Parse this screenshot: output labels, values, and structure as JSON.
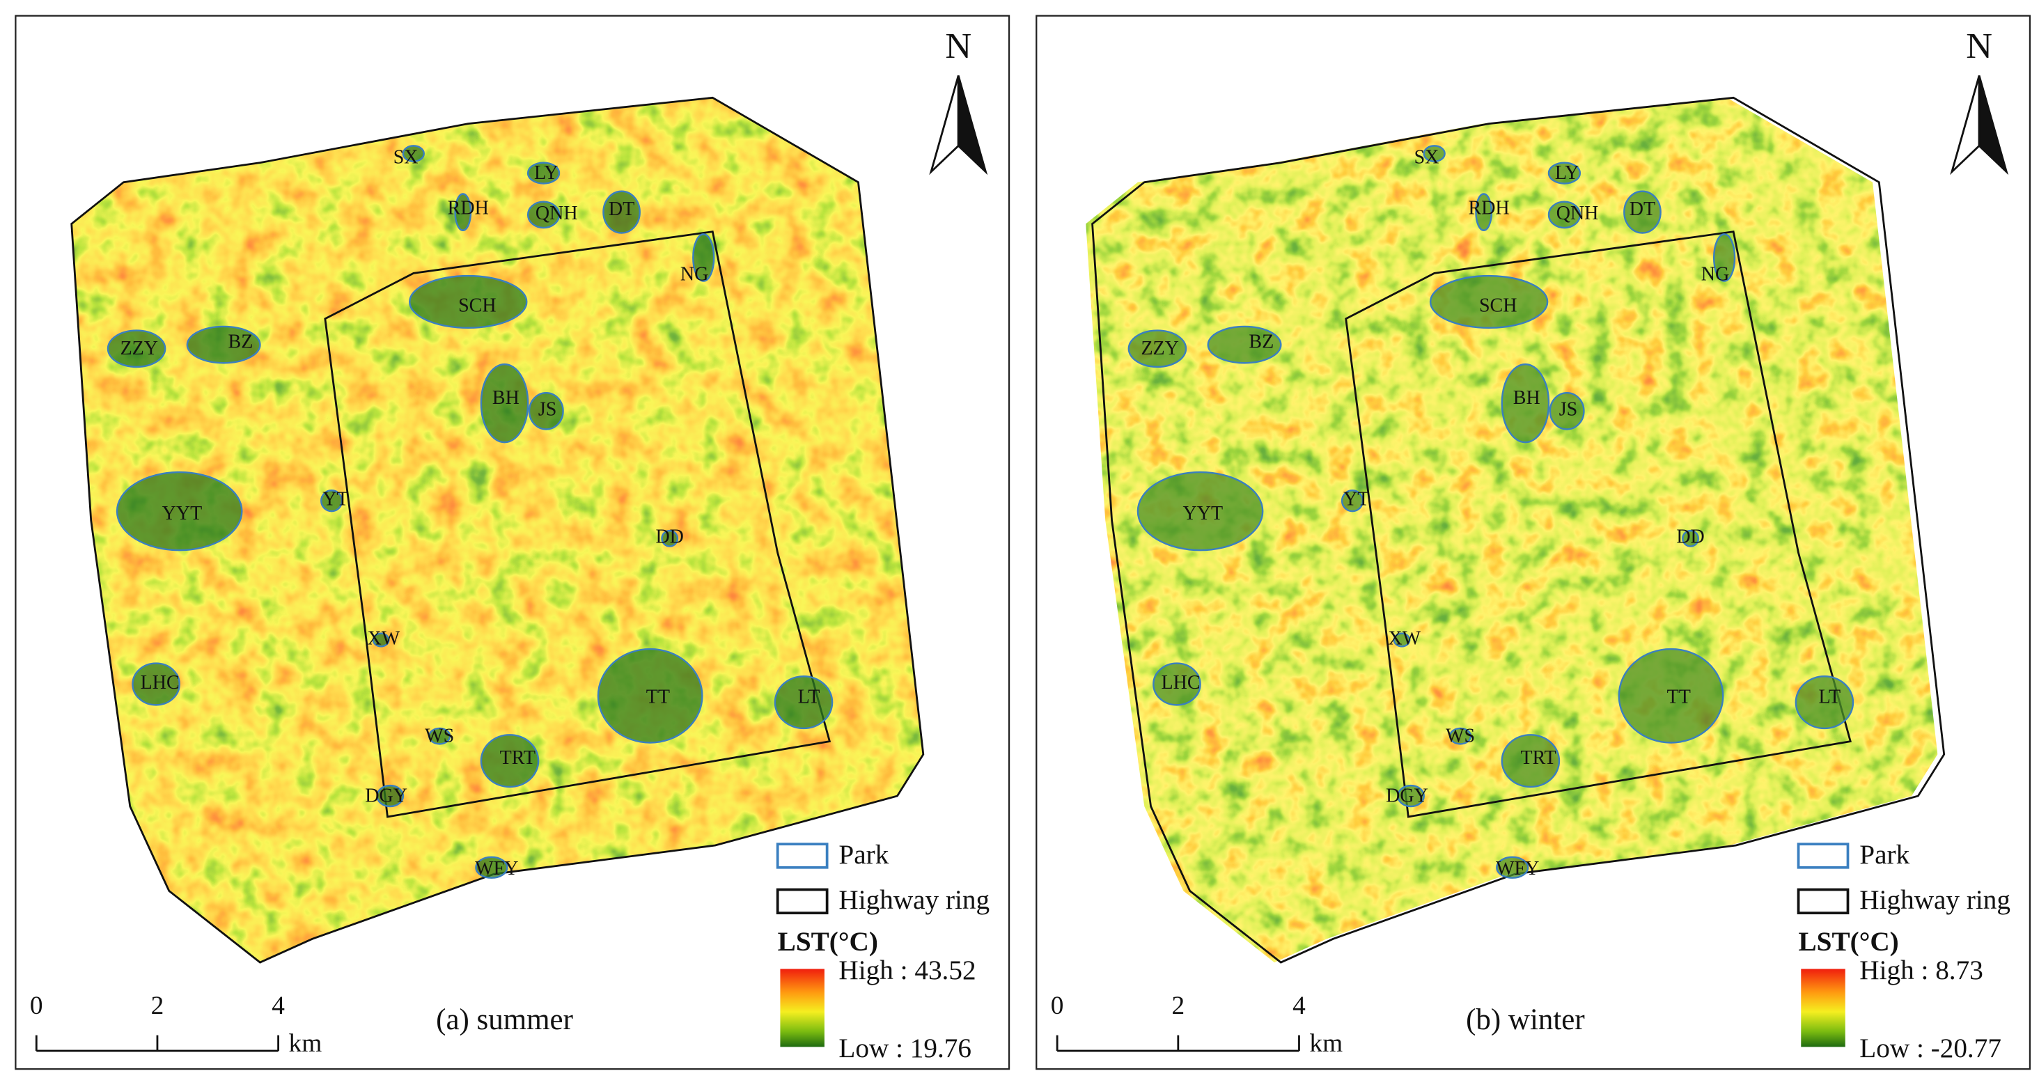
{
  "panels": [
    {
      "caption": "(a) summer",
      "north": "N",
      "park_labels": [
        "SX",
        "LY",
        "RDH",
        "QNH",
        "DT",
        "NG",
        "SCH",
        "ZZY",
        "BZ",
        "BH",
        "JS",
        "YYT",
        "YT",
        "DD",
        "XW",
        "LHC",
        "TT",
        "LT",
        "WS",
        "TRT",
        "DGY",
        "WFY"
      ],
      "legend": {
        "park": "Park",
        "highway": "Highway ring",
        "title": "LST(°C)",
        "high": "High : 43.52",
        "low": "Low : 19.76"
      },
      "scale": {
        "ticks": [
          "0",
          "2",
          "4"
        ],
        "unit": "km"
      }
    },
    {
      "caption": "(b) winter",
      "north": "N",
      "park_labels": [
        "SX",
        "LY",
        "RDH",
        "QNH",
        "DT",
        "NG",
        "SCH",
        "ZZY",
        "BZ",
        "BH",
        "JS",
        "YYT",
        "YT",
        "DD",
        "XW",
        "LHC",
        "TT",
        "LT",
        "WS",
        "TRT",
        "DGY",
        "WFY"
      ],
      "legend": {
        "park": "Park",
        "highway": "Highway ring",
        "title": "LST(°C)",
        "high": "High : 8.73",
        "low": "Low : -20.77"
      },
      "scale": {
        "ticks": [
          "0",
          "2",
          "4"
        ],
        "unit": "km"
      }
    }
  ]
}
